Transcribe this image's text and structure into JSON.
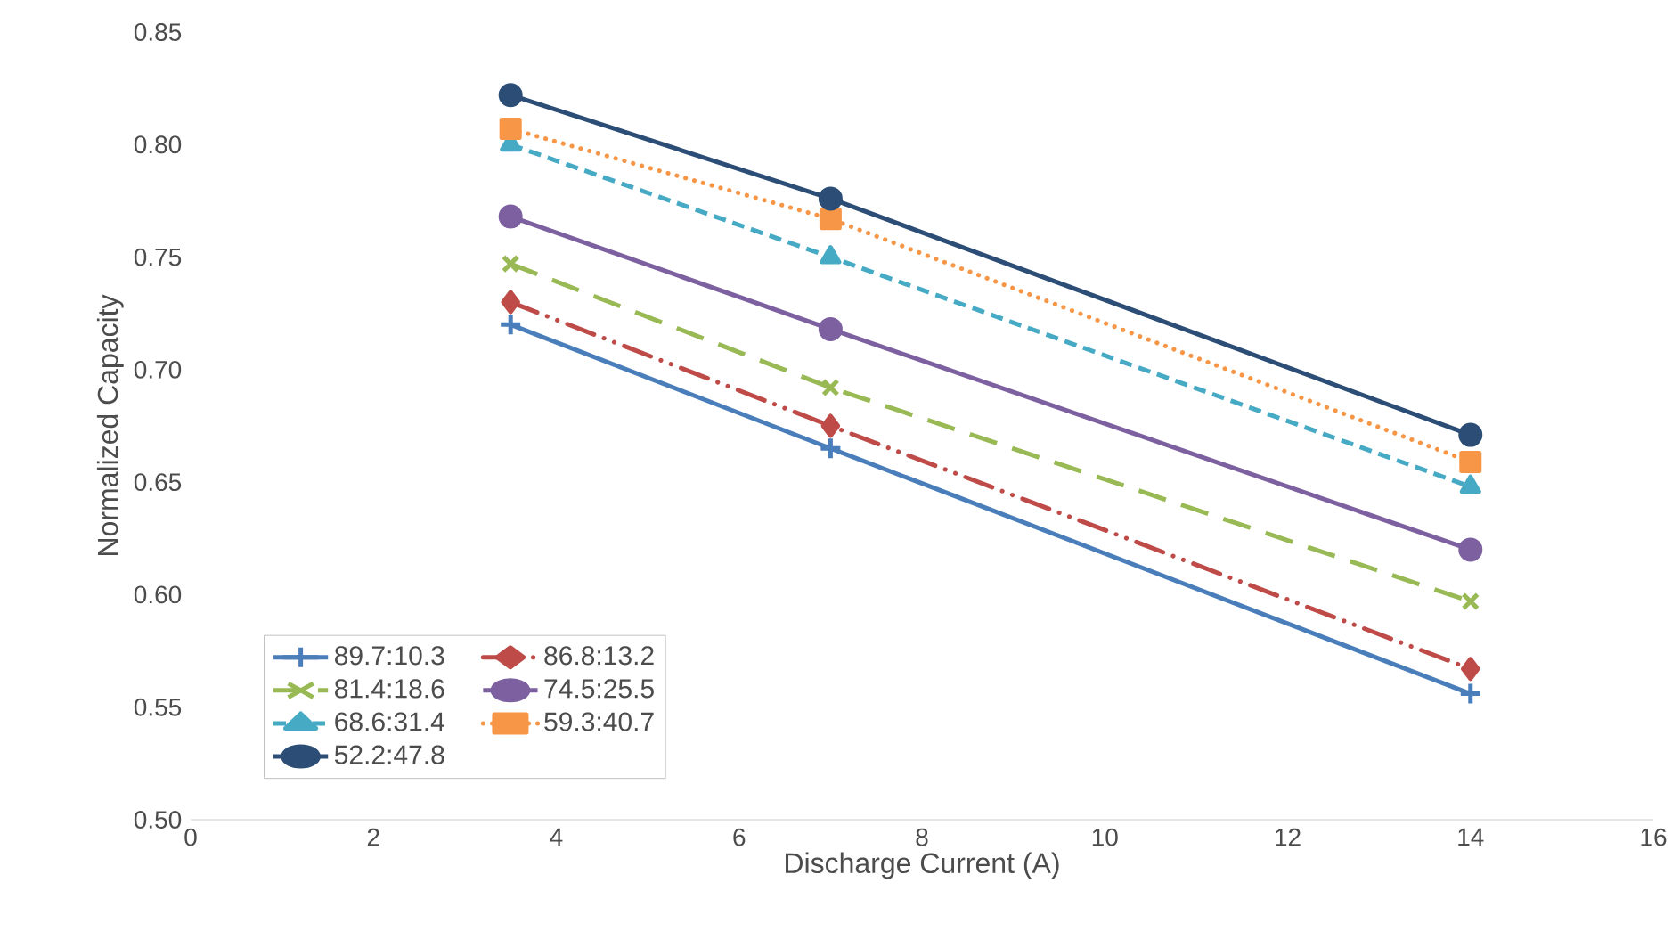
{
  "chart_data": {
    "type": "line",
    "xlabel": "Discharge Current (A)",
    "ylabel": "Normalized Capacity",
    "x": [
      3.5,
      7,
      14
    ],
    "series": [
      {
        "name": "89.7:10.3",
        "color": "#4a7ebb",
        "marker": "plus",
        "line_style": "solid",
        "values": [
          0.72,
          0.665,
          0.556
        ]
      },
      {
        "name": "86.8:13.2",
        "color": "#be4b48",
        "marker": "diamond",
        "line_style": "dashdotdot",
        "values": [
          0.73,
          0.675,
          0.567
        ]
      },
      {
        "name": "81.4:18.6",
        "color": "#98b954",
        "marker": "cross",
        "line_style": "longdash",
        "values": [
          0.747,
          0.692,
          0.597
        ]
      },
      {
        "name": "74.5:25.5",
        "color": "#7d60a0",
        "marker": "circle",
        "line_style": "solid",
        "values": [
          0.768,
          0.718,
          0.62
        ]
      },
      {
        "name": "68.6:31.4",
        "color": "#46aac5",
        "marker": "triangle",
        "line_style": "dashed",
        "values": [
          0.8,
          0.75,
          0.648
        ]
      },
      {
        "name": "59.3:40.7",
        "color": "#f79646",
        "marker": "square",
        "line_style": "dotted",
        "values": [
          0.807,
          0.767,
          0.659
        ]
      },
      {
        "name": "52.2:47.8",
        "color": "#2c4d75",
        "marker": "circle",
        "line_style": "solid",
        "values": [
          0.822,
          0.776,
          0.671
        ]
      }
    ],
    "xlim": [
      0,
      16
    ],
    "xticks": [
      0,
      2,
      4,
      6,
      8,
      10,
      12,
      14,
      16
    ],
    "ylim": [
      0.5,
      0.85
    ],
    "yticks": [
      {
        "value": 0.5,
        "label": "0.50"
      },
      {
        "value": 0.55,
        "label": "0.55"
      },
      {
        "value": 0.6,
        "label": "0.60"
      },
      {
        "value": 0.65,
        "label": "0.65"
      },
      {
        "value": 0.7,
        "label": "0.70"
      },
      {
        "value": 0.75,
        "label": "0.75"
      },
      {
        "value": 0.8,
        "label": "0.80"
      },
      {
        "value": 0.85,
        "label": "0.85"
      }
    ],
    "legend": "bottom left",
    "grid": false
  }
}
